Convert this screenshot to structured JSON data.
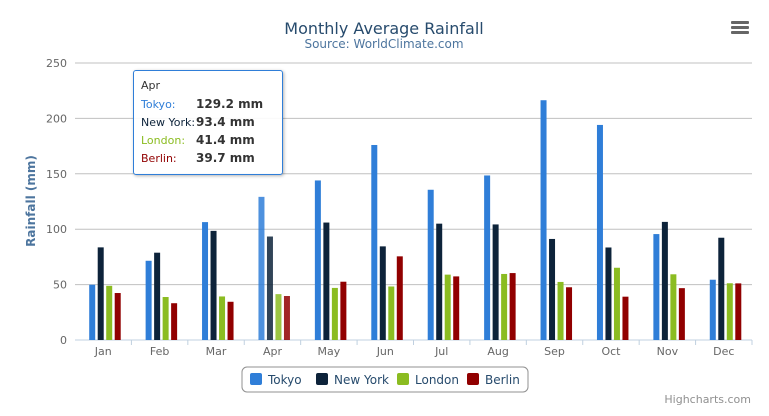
{
  "chart_data": {
    "type": "bar",
    "title": "Monthly Average Rainfall",
    "subtitle": "Source: WorldClimate.com",
    "xlabel": "",
    "ylabel": "Rainfall (mm)",
    "ylim": [
      0,
      250
    ],
    "yticks": [
      "0",
      "50",
      "100",
      "150",
      "200",
      "250"
    ],
    "grid": true,
    "legend_position": "bottom",
    "categories": [
      "Jan",
      "Feb",
      "Mar",
      "Apr",
      "May",
      "Jun",
      "Jul",
      "Aug",
      "Sep",
      "Oct",
      "Nov",
      "Dec"
    ],
    "series": [
      {
        "name": "Tokyo",
        "color": "#2f7ed8",
        "values": [
          49.9,
          71.5,
          106.4,
          129.2,
          144.0,
          176.0,
          135.6,
          148.5,
          216.4,
          194.1,
          95.6,
          54.4
        ]
      },
      {
        "name": "New York",
        "color": "#0d233a",
        "values": [
          83.6,
          78.8,
          98.5,
          93.4,
          106.0,
          84.5,
          105.0,
          104.3,
          91.2,
          83.5,
          106.6,
          92.3
        ]
      },
      {
        "name": "London",
        "color": "#8bbc21",
        "values": [
          48.9,
          38.8,
          39.3,
          41.4,
          47.0,
          48.3,
          59.0,
          59.6,
          52.4,
          65.2,
          59.3,
          51.2
        ]
      },
      {
        "name": "Berlin",
        "color": "#910000",
        "values": [
          42.4,
          33.2,
          34.5,
          39.7,
          52.6,
          75.5,
          57.4,
          60.4,
          47.6,
          39.1,
          46.8,
          51.1
        ]
      }
    ]
  },
  "tooltip": {
    "header": "Apr",
    "rows": [
      {
        "name": "Tokyo:",
        "value": "129.2 mm",
        "color": "#2f7ed8"
      },
      {
        "name": "New York:",
        "value": "93.4 mm",
        "color": "#0d233a"
      },
      {
        "name": "London:",
        "value": "41.4 mm",
        "color": "#8bbc21"
      },
      {
        "name": "Berlin:",
        "value": "39.7 mm",
        "color": "#910000"
      }
    ]
  },
  "menu_icon": "hamburger-menu-icon",
  "credits": "Highcharts.com"
}
